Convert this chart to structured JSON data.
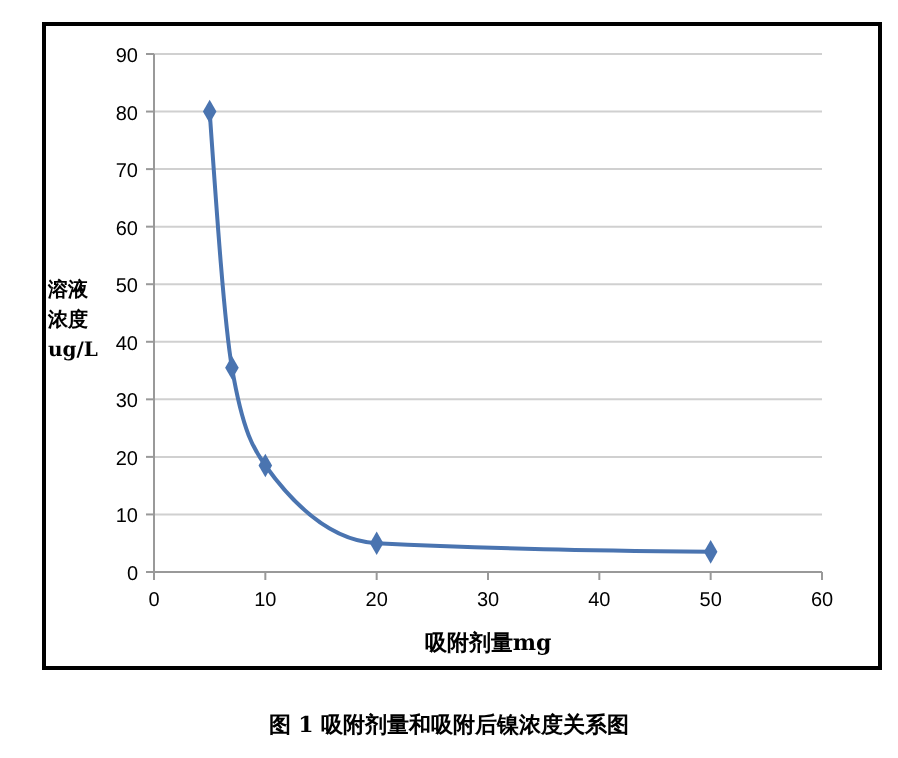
{
  "chart_data": {
    "type": "line",
    "xlabel": "吸附剂量mg",
    "ylabel": "溶液浓度ug/L",
    "annotations": [
      "图 1   吸附剂量和吸附后镍浓度关系图"
    ],
    "x": [
      5,
      7,
      10,
      20,
      50
    ],
    "series": [
      {
        "color": "#4a74b0",
        "values": [
          80,
          35.5,
          18.5,
          5,
          3.5
        ]
      }
    ],
    "xlim": [
      0,
      60
    ],
    "xticks": [
      0,
      10,
      20,
      30,
      40,
      50,
      60
    ],
    "ylim": [
      0,
      90
    ],
    "yticks": [
      0,
      10,
      20,
      30,
      40,
      50,
      60,
      70,
      80,
      90
    ],
    "grid": "y",
    "marker": "diamond",
    "line_style": "solid"
  }
}
